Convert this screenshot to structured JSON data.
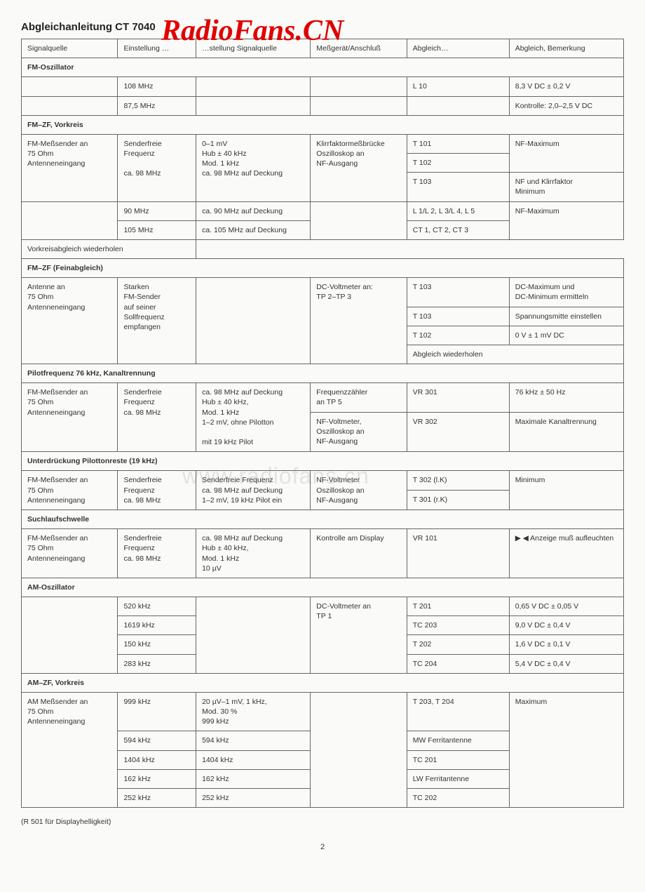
{
  "doc_title": "Abgleichanleitung CT 7040",
  "watermark_top": "RadioFans.CN",
  "watermark_mid": "www.radiofans.cn",
  "footnote": "(R 501 für Displayhelligkeit)",
  "page_number": "2",
  "colors": {
    "text": "#333333",
    "border": "#666666",
    "watermark_red": "#e00000",
    "watermark_gray": "rgba(120,120,120,0.18)",
    "background": "#fafaf8"
  },
  "header": {
    "c1": "Signalquelle",
    "c2": "Einstellung …",
    "c3": "…stellung Signalquelle",
    "c4": "Meßgerät/Anschluß",
    "c5": "Abgleich…",
    "c6": "Abgleich, Bemerkung"
  },
  "sections": [
    {
      "title": "FM-Oszillator",
      "rows": [
        {
          "c1": "",
          "c2": "108 MHz",
          "c3": "",
          "c4": "",
          "c5": "L 10",
          "c6": "8,3 V DC ± 0,2 V"
        },
        {
          "c1": "",
          "c2": "87,5 MHz",
          "c3": "",
          "c4": "",
          "c5": "",
          "c6": "Kontrolle: 2,0–2,5 V DC"
        }
      ]
    },
    {
      "title": "FM–ZF, Vorkreis",
      "rows": [
        {
          "c1": "FM-Meßsender an\n75 Ohm\nAntenneneingang",
          "c2": "Senderfreie\nFrequenz\n\nca.  98 MHz",
          "c3": "0–1  mV\nHub ± 40 kHz\nMod. 1 kHz\nca. 98 MHz auf Deckung",
          "c4": "Klirrfaktormeßbrücke\nOszilloskop an\nNF-Ausgang",
          "c5": "T 101",
          "c6": "NF-Maximum",
          "c1rs": 3,
          "c2rs": 3,
          "c3rs": 3,
          "c4rs": 3,
          "c6rs": 2
        },
        {
          "c5": "T 102"
        },
        {
          "c5": "T 103",
          "c6": "NF und Klirrfaktor\nMinimum"
        },
        {
          "c1": "",
          "c2": "90 MHz",
          "c3": "ca.  90 MHz auf Deckung",
          "c4": "",
          "c5": "L 1/L 2, L 3/L 4, L 5",
          "c6": "NF-Maximum",
          "c1rs": 2,
          "c4rs": 2,
          "c6rs": 2
        },
        {
          "c2": "105 MHz",
          "c3": "ca. 105 MHz auf Deckung",
          "c5": "CT 1, CT 2, CT 3"
        },
        {
          "c1": "",
          "c2": "",
          "c3": "",
          "c4": "",
          "c5": "Vorkreisabgleich wiederholen",
          "c5span": 2,
          "skip": [
            1,
            2,
            3,
            4
          ]
        }
      ]
    },
    {
      "title": "FM–ZF (Feinabgleich)",
      "rows": [
        {
          "c1": "Antenne an\n75 Ohm\nAntenneneingang",
          "c2": "Starken\nFM-Sender\nauf seiner\nSollfrequenz\nempfangen",
          "c3": "",
          "c4": "DC-Voltmeter an:\nTP 2–TP 3",
          "c5": "T 103",
          "c6": "DC-Maximum und\nDC-Minimum ermitteln",
          "c1rs": 4,
          "c2rs": 4,
          "c3rs": 4,
          "c4rs": 4
        },
        {
          "c5": "T 103",
          "c6": "Spannungsmitte einstellen"
        },
        {
          "c5": "T 102",
          "c6": "0 V ± 1 mV DC"
        },
        {
          "c5": "Abgleich wiederholen",
          "c5span": 2
        }
      ]
    },
    {
      "title": "Pilotfrequenz 76 kHz, Kanaltrennung",
      "rows": [
        {
          "c1": "FM-Meßsender an\n75 Ohm\nAntenneneingang",
          "c2": "Senderfreie\nFrequenz\nca. 98 MHz",
          "c3": "ca. 98 MHz auf Deckung\nHub ± 40 kHz,\nMod. 1 kHz\n1–2 mV, ohne Pilotton\n\nmit 19 kHz Pilot",
          "c4": "Frequenzzähler\nan TP 5",
          "c5": "VR 301",
          "c6": "76 kHz ± 50 Hz",
          "c1rs": 2,
          "c2rs": 2,
          "c3rs": 2
        },
        {
          "c4": "NF-Voltmeter,\nOszilloskop an\nNF-Ausgang",
          "c5": "VR 302",
          "c6": "Maximale Kanaltrennung"
        }
      ]
    },
    {
      "title": "Unterdrückung Pilottonreste (19 kHz)",
      "rows": [
        {
          "c1": "FM-Meßsender an\n75 Ohm\nAntenneneingang",
          "c2": "Senderfreie\nFrequenz\nca. 98 MHz",
          "c3": "Senderfreie Frequenz\nca. 98 MHz auf Deckung\n1–2 mV, 19 kHz Pilot ein",
          "c4": "NF-Voltmeter\nOszilloskop an\nNF-Ausgang",
          "c5": "T 302 (l.K)",
          "c6": "Minimum",
          "c1rs": 2,
          "c2rs": 2,
          "c3rs": 2,
          "c4rs": 2,
          "c6rs": 2
        },
        {
          "c5": "T 301 (r.K)"
        }
      ]
    },
    {
      "title": "Suchlaufschwelle",
      "rows": [
        {
          "c1": "FM-Meßsender an\n75 Ohm\nAntenneneingang",
          "c2": "Senderfreie\nFrequenz\nca. 98 MHz",
          "c3": "ca. 98 MHz auf Deckung\nHub ± 40 kHz,\nMod. 1 kHz\n10 µV",
          "c4": "Kontrolle am Display",
          "c5": "VR 101",
          "c6": "▶ ◀ Anzeige muß aufleuchten"
        }
      ]
    },
    {
      "title": "AM-Oszillator",
      "rows": [
        {
          "c1": "",
          "c2": "520 kHz",
          "c3": "",
          "c4": "DC-Voltmeter an\nTP 1",
          "c5": "T 201",
          "c6": "0,65 V DC ± 0,05 V",
          "c1rs": 4,
          "c3rs": 4,
          "c4rs": 4
        },
        {
          "c2": "1619 kHz",
          "c5": "TC 203",
          "c6": "9,0 V DC ± 0,4 V"
        },
        {
          "c2": "150 kHz",
          "c5": "T 202",
          "c6": "1,6 V DC ± 0,1 V"
        },
        {
          "c2": "283 kHz",
          "c5": "TC 204",
          "c6": "5,4 V DC ± 0,4 V"
        }
      ]
    },
    {
      "title": "AM–ZF, Vorkreis",
      "rows": [
        {
          "c1": "AM Meßsender an\n75 Ohm\nAntenneneingang",
          "c2": "999 kHz",
          "c3": "20 µV–1 mV, 1 kHz,\nMod. 30 %\n   999 kHz",
          "c4": "",
          "c5": "T 203, T 204",
          "c6": "Maximum",
          "c1rs": 5,
          "c4rs": 5,
          "c6rs": 5
        },
        {
          "c2": "594 kHz",
          "c3": "   594 kHz",
          "c5": "MW Ferritantenne"
        },
        {
          "c2": "1404 kHz",
          "c3": "1404 kHz",
          "c5": "TC 201"
        },
        {
          "c2": "162 kHz",
          "c3": "   162 kHz",
          "c5": "LW Ferritantenne"
        },
        {
          "c2": "252 kHz",
          "c3": "   252 kHz",
          "c5": "TC 202"
        }
      ]
    }
  ]
}
